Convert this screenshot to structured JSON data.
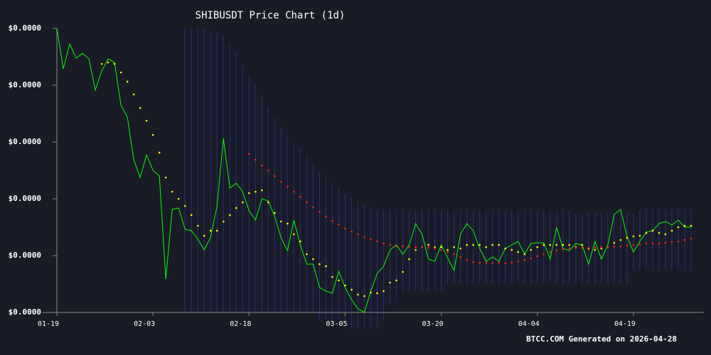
{
  "chart_data": {
    "type": "line",
    "title": "SHIBUSDT Price Chart (1d)",
    "footer": "BTCC.COM Generated on 2026-04-28",
    "categories": [
      "01-19",
      null,
      null,
      null,
      null,
      null,
      null,
      null,
      null,
      null,
      null,
      null,
      null,
      null,
      null,
      "02-03",
      null,
      null,
      null,
      null,
      null,
      null,
      null,
      null,
      null,
      null,
      null,
      null,
      null,
      null,
      "02-18",
      null,
      null,
      null,
      null,
      null,
      null,
      null,
      null,
      null,
      null,
      null,
      null,
      null,
      null,
      "03-05",
      null,
      null,
      null,
      null,
      null,
      null,
      null,
      null,
      null,
      null,
      null,
      null,
      null,
      null,
      "03-20",
      null,
      null,
      null,
      null,
      null,
      null,
      null,
      null,
      null,
      null,
      null,
      null,
      null,
      null,
      "04-04",
      null,
      null,
      null,
      null,
      null,
      null,
      null,
      null,
      null,
      null,
      null,
      null,
      null,
      null,
      "04-19",
      null,
      null,
      null,
      null,
      null,
      null,
      null,
      null,
      null
    ],
    "ylim": [
      5e-06,
      1e-05
    ],
    "yticks": [
      {
        "value": 5e-06,
        "label": "$0.0000"
      },
      {
        "value": 6e-06,
        "label": "$0.0000"
      },
      {
        "value": 7e-06,
        "label": "$0.0000"
      },
      {
        "value": 8e-06,
        "label": "$0.0000"
      },
      {
        "value": 9e-06,
        "label": "$0.0000"
      },
      {
        "value": 1e-05,
        "label": "$0.0000"
      }
    ],
    "band": {
      "color": "#2a2f8a",
      "upper": [
        null,
        null,
        null,
        null,
        null,
        null,
        null,
        null,
        null,
        null,
        null,
        null,
        null,
        null,
        null,
        null,
        null,
        null,
        null,
        null,
        1e-05,
        1e-05,
        1e-05,
        1e-05,
        9.975e-06,
        9.938e-06,
        9.875e-06,
        9.75e-06,
        9.563e-06,
        9.375e-06,
        9.188e-06,
        9e-06,
        8.813e-06,
        8.625e-06,
        8.438e-06,
        8.275e-06,
        8.125e-06,
        8e-06,
        7.875e-06,
        7.75e-06,
        7.625e-06,
        7.5e-06,
        7.375e-06,
        7.275e-06,
        7.188e-06,
        7.1e-06,
        7.025e-06,
        6.95e-06,
        6.9e-06,
        6.85e-06,
        6.813e-06,
        6.8e-06,
        6.8e-06,
        6.8e-06,
        6.8e-06,
        6.8e-06,
        6.8e-06,
        6.8e-06,
        6.8e-06,
        6.8e-06,
        6.8e-06,
        6.8e-06,
        6.8e-06,
        6.8e-06,
        6.8e-06,
        6.8e-06,
        6.8e-06,
        6.8e-06,
        6.8e-06,
        6.8e-06,
        6.8e-06,
        6.8e-06,
        6.8e-06,
        6.8e-06,
        6.8e-06,
        6.8e-06,
        6.8e-06,
        6.8e-06,
        6.8e-06,
        6.8e-06,
        6.8e-06,
        6.75e-06,
        6.75e-06,
        6.75e-06,
        6.75e-06,
        6.75e-06,
        6.75e-06,
        6.75e-06,
        6.75e-06,
        6.75e-06,
        6.75e-06,
        6.813e-06,
        6.813e-06,
        6.813e-06,
        6.813e-06,
        6.813e-06,
        6.813e-06,
        6.813e-06,
        6.813e-06,
        6.813e-06
      ],
      "lower": [
        null,
        null,
        null,
        null,
        null,
        null,
        null,
        null,
        null,
        null,
        null,
        null,
        null,
        null,
        null,
        null,
        null,
        null,
        null,
        null,
        5e-06,
        5e-06,
        5e-06,
        5e-06,
        5e-06,
        5e-06,
        5e-06,
        5e-06,
        5e-06,
        5e-06,
        5e-06,
        5e-06,
        5e-06,
        5e-06,
        5e-06,
        5e-06,
        5e-06,
        5e-06,
        5e-06,
        5e-06,
        5e-06,
        4.875e-06,
        4.875e-06,
        4.875e-06,
        4.875e-06,
        4.875e-06,
        4.7e-06,
        4.7e-06,
        4.7e-06,
        4.7e-06,
        4.7e-06,
        4.875e-06,
        5.125e-06,
        5.25e-06,
        5.375e-06,
        5.375e-06,
        5.375e-06,
        5.375e-06,
        5.375e-06,
        5.375e-06,
        5.375e-06,
        5.5e-06,
        5.5e-06,
        5.5e-06,
        5.5e-06,
        5.5e-06,
        5.5e-06,
        5.5e-06,
        5.5e-06,
        5.5e-06,
        5.5e-06,
        5.5e-06,
        5.5e-06,
        5.5e-06,
        5.5e-06,
        5.5e-06,
        5.5e-06,
        5.5e-06,
        5.5e-06,
        5.5e-06,
        5.5e-06,
        5.5e-06,
        5.5e-06,
        5.5e-06,
        5.5e-06,
        5.5e-06,
        5.5e-06,
        5.5e-06,
        5.5e-06,
        5.5e-06,
        5.75e-06,
        5.75e-06,
        5.75e-06,
        5.75e-06,
        5.75e-06,
        5.75e-06,
        5.75e-06,
        5.75e-06,
        5.75e-06,
        5.75e-06
      ]
    },
    "series": [
      {
        "color": "#00ff00",
        "style": "line",
        "values": [
          1e-05,
          9.288e-06,
          9.725e-06,
          9.475e-06,
          9.563e-06,
          9.463e-06,
          8.913e-06,
          9.25e-06,
          9.463e-06,
          9.4e-06,
          8.65e-06,
          8.438e-06,
          7.688e-06,
          7.375e-06,
          7.775e-06,
          7.5e-06,
          7.4e-06,
          5.588e-06,
          6.813e-06,
          6.838e-06,
          6.463e-06,
          6.438e-06,
          6.288e-06,
          6.1e-06,
          6.325e-06,
          6.875e-06,
          8.063e-06,
          7.188e-06,
          7.275e-06,
          7.125e-06,
          6.788e-06,
          6.625e-06,
          7e-06,
          6.963e-06,
          6.688e-06,
          6.313e-06,
          6.088e-06,
          6.625e-06,
          6.188e-06,
          5.85e-06,
          5.85e-06,
          5.438e-06,
          5.375e-06,
          5.338e-06,
          5.725e-06,
          5.438e-06,
          5.225e-06,
          5.063e-06,
          5e-06,
          5.375e-06,
          5.688e-06,
          5.813e-06,
          6.1e-06,
          6.188e-06,
          6.025e-06,
          6.188e-06,
          6.563e-06,
          6.375e-06,
          5.938e-06,
          5.9e-06,
          6.188e-06,
          5.963e-06,
          5.738e-06,
          6.375e-06,
          6.563e-06,
          6.438e-06,
          6.125e-06,
          5.9e-06,
          5.975e-06,
          5.9e-06,
          6.125e-06,
          6.188e-06,
          6.25e-06,
          6.025e-06,
          6.213e-06,
          6.225e-06,
          6.225e-06,
          5.938e-06,
          6.5e-06,
          6.125e-06,
          6.088e-06,
          6.213e-06,
          6.188e-06,
          5.85e-06,
          6.25e-06,
          5.938e-06,
          6.188e-06,
          6.725e-06,
          6.813e-06,
          6.338e-06,
          6.063e-06,
          6.25e-06,
          6.413e-06,
          6.438e-06,
          6.563e-06,
          6.6e-06,
          6.538e-06,
          6.625e-06,
          6.5e-06,
          6.5e-06
        ]
      },
      {
        "color": "#ffff00",
        "style": "dots",
        "values": [
          null,
          null,
          null,
          null,
          null,
          null,
          null,
          9.375e-06,
          9.4e-06,
          9.375e-06,
          9.225e-06,
          9.063e-06,
          8.838e-06,
          8.6e-06,
          8.375e-06,
          8.125e-06,
          7.813e-06,
          7.375e-06,
          7.125e-06,
          7e-06,
          6.875e-06,
          6.713e-06,
          6.525e-06,
          6.35e-06,
          6.438e-06,
          6.438e-06,
          6.6e-06,
          6.713e-06,
          6.838e-06,
          6.938e-06,
          7.1e-06,
          7.125e-06,
          7.15e-06,
          6.938e-06,
          6.75e-06,
          6.6e-06,
          6.563e-06,
          6.375e-06,
          6.25e-06,
          6.025e-06,
          5.938e-06,
          5.85e-06,
          5.813e-06,
          5.625e-06,
          5.563e-06,
          5.475e-06,
          5.4e-06,
          5.313e-06,
          5.288e-06,
          5.35e-06,
          5.338e-06,
          5.375e-06,
          5.525e-06,
          5.563e-06,
          5.713e-06,
          5.938e-06,
          6.1e-06,
          6.15e-06,
          6.188e-06,
          6.15e-06,
          6.15e-06,
          6.1e-06,
          6.15e-06,
          6.125e-06,
          6.188e-06,
          6.188e-06,
          6.188e-06,
          6.15e-06,
          6.188e-06,
          6.188e-06,
          6.125e-06,
          6.1e-06,
          6.063e-06,
          6.025e-06,
          6.1e-06,
          6.15e-06,
          6.188e-06,
          6.188e-06,
          6.188e-06,
          6.188e-06,
          6.188e-06,
          6.15e-06,
          6.188e-06,
          6.125e-06,
          6.1e-06,
          6.125e-06,
          6.15e-06,
          6.225e-06,
          6.275e-06,
          6.313e-06,
          6.338e-06,
          6.35e-06,
          6.4e-06,
          6.438e-06,
          6.4e-06,
          6.375e-06,
          6.438e-06,
          6.5e-06,
          6.525e-06,
          6.525e-06
        ]
      },
      {
        "color": "#ff2020",
        "style": "dots",
        "values": [
          null,
          null,
          null,
          null,
          null,
          null,
          null,
          null,
          null,
          null,
          null,
          null,
          null,
          null,
          null,
          null,
          null,
          null,
          null,
          null,
          null,
          null,
          null,
          null,
          null,
          null,
          null,
          null,
          null,
          null,
          7.788e-06,
          7.688e-06,
          7.588e-06,
          7.5e-06,
          7.4e-06,
          7.3e-06,
          7.213e-06,
          7.125e-06,
          7.038e-06,
          6.938e-06,
          6.85e-06,
          6.775e-06,
          6.688e-06,
          6.613e-06,
          6.55e-06,
          6.475e-06,
          6.425e-06,
          6.375e-06,
          6.325e-06,
          6.288e-06,
          6.25e-06,
          6.213e-06,
          6.188e-06,
          6.163e-06,
          6.163e-06,
          6.15e-06,
          6.15e-06,
          6.15e-06,
          6.138e-06,
          6.125e-06,
          6.1e-06,
          6.063e-06,
          6.025e-06,
          5.975e-06,
          5.925e-06,
          5.888e-06,
          5.875e-06,
          5.875e-06,
          5.875e-06,
          5.875e-06,
          5.863e-06,
          5.875e-06,
          5.9e-06,
          5.925e-06,
          5.95e-06,
          5.988e-06,
          6.025e-06,
          6.063e-06,
          6.088e-06,
          6.113e-06,
          6.125e-06,
          6.138e-06,
          6.138e-06,
          6.138e-06,
          6.138e-06,
          6.15e-06,
          6.15e-06,
          6.163e-06,
          6.163e-06,
          6.175e-06,
          6.188e-06,
          6.2e-06,
          6.213e-06,
          6.213e-06,
          6.213e-06,
          6.225e-06,
          6.238e-06,
          6.25e-06,
          6.275e-06,
          6.3e-06
        ]
      }
    ]
  }
}
